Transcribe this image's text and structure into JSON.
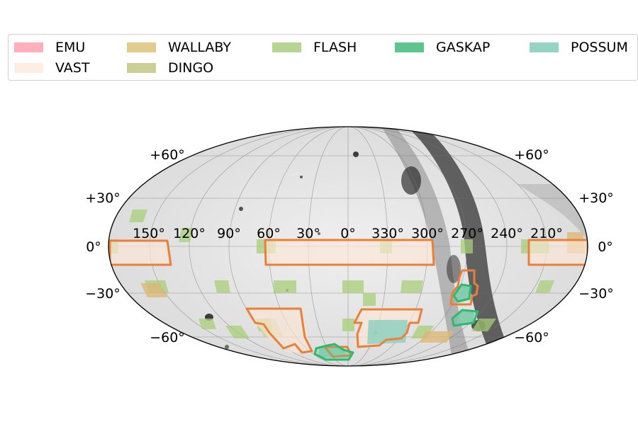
{
  "legend": {
    "items": [
      {
        "label": "EMU",
        "color": "#ffb0bc"
      },
      {
        "label": "VAST",
        "color": "#fdeee3"
      },
      {
        "label": "WALLABY",
        "color": "#e3cb8f"
      },
      {
        "label": "DINGO",
        "color": "#cdcd96"
      },
      {
        "label": "FLASH",
        "color": "#b6d592"
      },
      {
        "label": "GASKAP",
        "color": "#5fc48d"
      },
      {
        "label": "POSSUM",
        "color": "#95d4c5"
      }
    ]
  },
  "map": {
    "projection": "aitoff",
    "background": "grayscale all-sky image",
    "lat_labels": [
      "+60$^\\circ$",
      "+30$^\\circ$",
      "0$^\\circ$",
      "−30$^\\circ$",
      "−60$^\\circ$"
    ],
    "lat_labels_display": [
      "+60°",
      "+30°",
      "0°",
      "−30°",
      "−60°"
    ],
    "lon_labels": [
      "150°",
      "120°",
      "90°",
      "60°",
      "30°",
      "0°",
      "330°",
      "300°",
      "270°",
      "240°",
      "210°"
    ],
    "outline_colors": {
      "survey_outline": "#e8803a",
      "gaskap_outline": "#2fb870"
    }
  }
}
